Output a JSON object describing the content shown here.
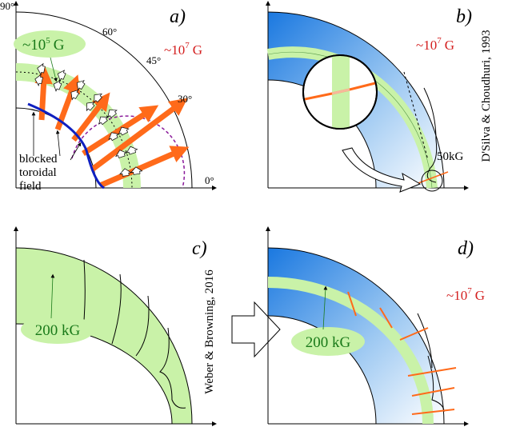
{
  "panel_a": {
    "label": "a)",
    "angle_90": "90°",
    "angle_60": "60°",
    "angle_45": "45°",
    "angle_30": "30°",
    "angle_0": "0°",
    "weak_field": {
      "prefix": "~10",
      "exponent": "5",
      "unit": "G"
    },
    "strong_field": {
      "prefix": "~10",
      "exponent": "7",
      "unit": "G"
    },
    "blocked_label": [
      "blocked",
      "toroidal",
      "field"
    ]
  },
  "panel_b": {
    "label": "b)",
    "strong_field": {
      "prefix": "~10",
      "exponent": "7",
      "unit": "G"
    },
    "flux_label": "50kG",
    "citation": "D'Silva & Choudhuri, 1993"
  },
  "panel_c": {
    "label": "c)",
    "field_label": "200 kG",
    "citation": "Weber & Browning, 2016"
  },
  "panel_d": {
    "label": "d)",
    "strong_field": {
      "prefix": "~10",
      "exponent": "7",
      "unit": "G"
    },
    "field_label": "200 kG"
  }
}
